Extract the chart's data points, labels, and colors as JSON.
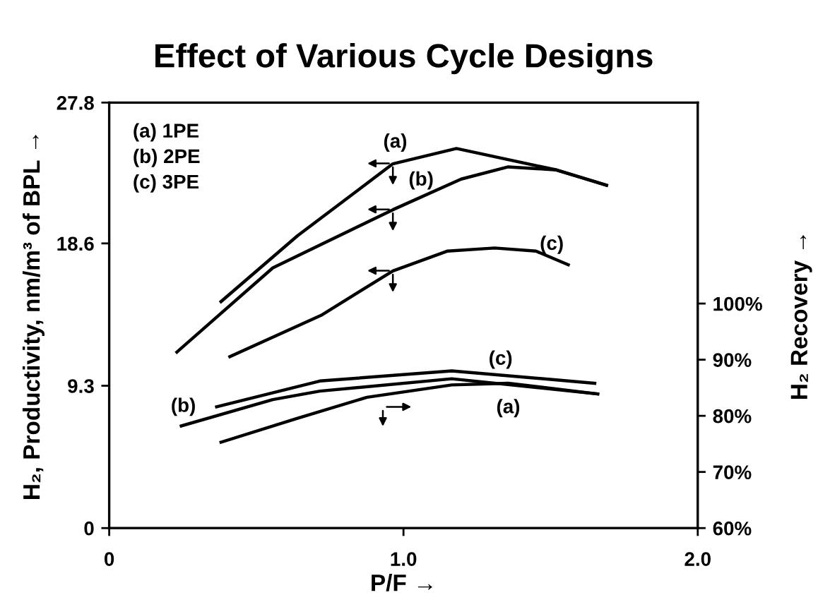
{
  "chart_data": {
    "type": "line",
    "title": "Effect of Various Cycle Designs",
    "xlabel": "P/F →",
    "ylabel": "H₂, Productivity, nm/m³ of BPL →",
    "y2label": "H₂ Recovery →",
    "xlim": [
      0,
      2.0
    ],
    "xticks": [
      0,
      {
        "value": 1.0,
        "label": "1.0"
      },
      {
        "value": 2.0,
        "label": "2.0"
      }
    ],
    "ylim": [
      0,
      27.8
    ],
    "yticks": [
      0,
      9.3,
      18.6,
      27.8
    ],
    "y2lim": [
      60,
      135.8
    ],
    "y2ticks": [
      {
        "value": 60,
        "label": "60%"
      },
      {
        "value": 70,
        "label": "70%"
      },
      {
        "value": 80,
        "label": "80%"
      },
      {
        "value": 90,
        "label": "90%"
      },
      {
        "value": 100,
        "label": "100%"
      }
    ],
    "grid": false,
    "legend": false,
    "marker": "none",
    "line_style": "solid",
    "series": [
      {
        "color": "#000000",
        "x": [
          0.38,
          0.64,
          0.964,
          1.18,
          1.52,
          1.69
        ],
        "values": [
          14.8,
          19.1,
          23.8,
          24.8,
          23.4,
          22.4
        ]
      },
      {
        "color": "#000000",
        "x": [
          0.23,
          0.556,
          0.964,
          1.196,
          1.356,
          1.52,
          1.69
        ],
        "values": [
          11.5,
          17.0,
          20.8,
          22.8,
          23.6,
          23.4,
          22.4
        ]
      },
      {
        "color": "#000000",
        "x": [
          0.41,
          0.72,
          0.964,
          1.15,
          1.31,
          1.45,
          1.56
        ],
        "values": [
          11.2,
          13.9,
          16.8,
          18.1,
          18.3,
          18.1,
          17.2
        ]
      },
      {
        "color": "#000000",
        "axis": "y2",
        "x": [
          0.38,
          0.636,
          0.876,
          1.164,
          1.356,
          1.66
        ],
        "values": [
          75.3,
          79.5,
          83.3,
          85.5,
          85.8,
          83.9
        ]
      },
      {
        "color": "#000000",
        "axis": "y2",
        "x": [
          0.245,
          0.556,
          0.716,
          1.164,
          1.66
        ],
        "values": [
          78.2,
          82.9,
          84.4,
          86.6,
          83.9
        ]
      },
      {
        "color": "#000000",
        "axis": "y2",
        "x": [
          0.365,
          0.716,
          1.164,
          1.65
        ],
        "values": [
          81.6,
          86.2,
          88.0,
          85.8
        ]
      }
    ],
    "annotations": [
      "(a) 1PE",
      "(b) 2PE",
      "(c) 3PE",
      "(a)",
      "(b)",
      "(c)",
      "(c)",
      "(a)",
      "(b)"
    ]
  }
}
